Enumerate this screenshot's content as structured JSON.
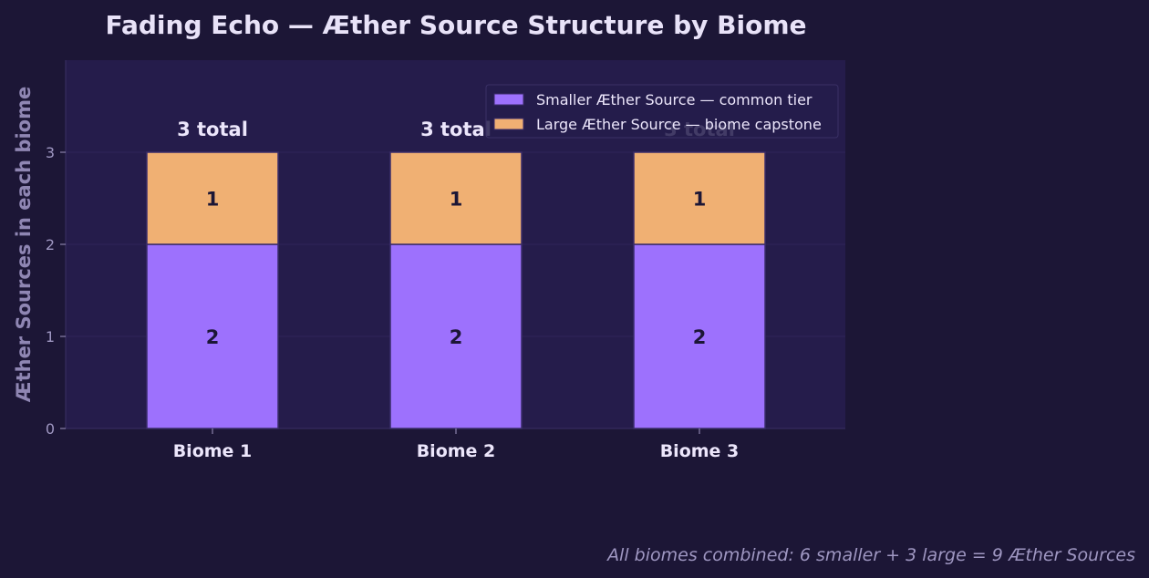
{
  "chart_data": {
    "type": "bar",
    "stacked": true,
    "title": "Fading Echo — Æther Source Structure by Biome",
    "xlabel": "",
    "ylabel": "Æther Sources in each biome",
    "categories": [
      "Biome 1",
      "Biome 2",
      "Biome 3"
    ],
    "series": [
      {
        "name": "Smaller Æther Source — common tier",
        "values": [
          2,
          2,
          2
        ],
        "color": "#9d71fd"
      },
      {
        "name": "Large Æther Source — biome capstone",
        "values": [
          1,
          1,
          1
        ],
        "color": "#f0b073"
      }
    ],
    "totals": [
      3,
      3,
      3
    ],
    "total_labels": [
      "3 total",
      "3 total",
      "3 total"
    ],
    "yticks": [
      0,
      1,
      2,
      3
    ],
    "ylim": [
      0,
      4
    ],
    "grid": true,
    "legend_position": "top-right"
  },
  "footnote": "All biomes combined: 6 smaller + 3 large = 9 Æther Sources"
}
